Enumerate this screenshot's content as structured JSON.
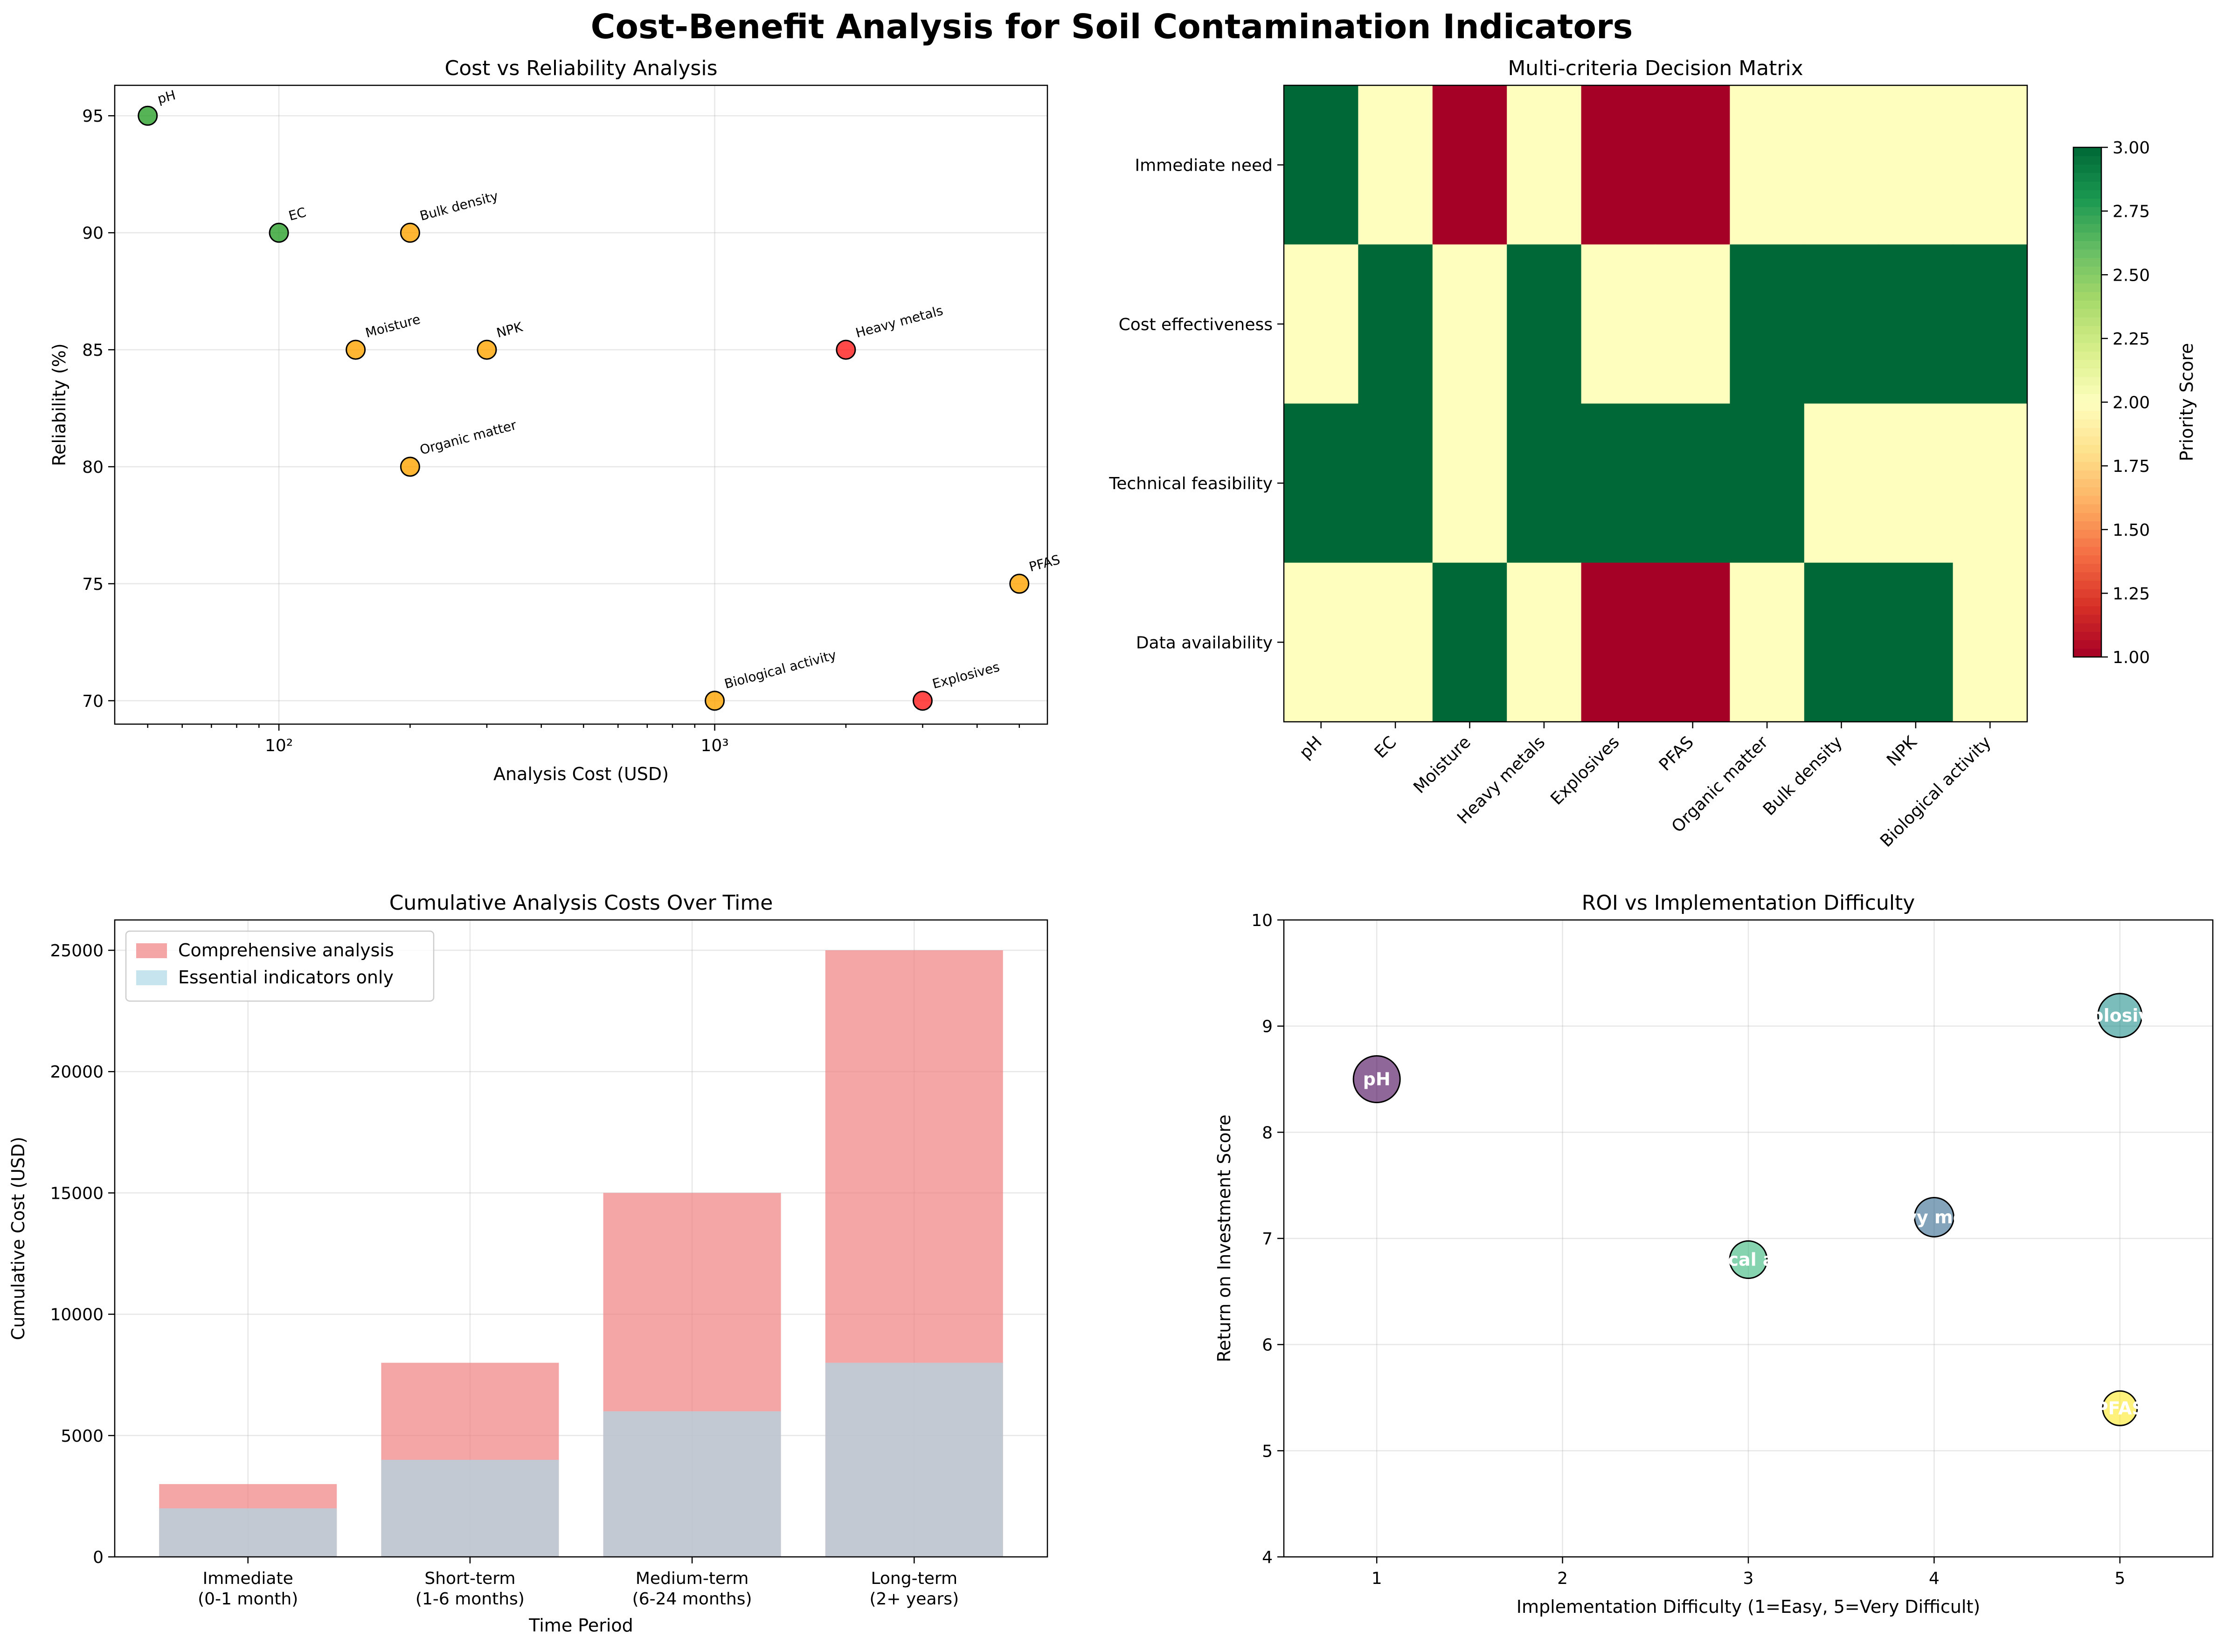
{
  "suptitle": "Cost-Benefit Analysis for Soil Contamination Indicators",
  "chart_data": [
    {
      "id": "cost_reliability",
      "type": "scatter",
      "title": "Cost vs Reliability Analysis",
      "xlabel": "Analysis Cost (USD)",
      "ylabel": "Reliability (%)",
      "xscale": "log",
      "xlim": [
        42,
        5800
      ],
      "ylim": [
        69,
        96.3
      ],
      "xticks": [
        {
          "value": 100,
          "label": "10²"
        },
        {
          "value": 1000,
          "label": "10³"
        }
      ],
      "yticks": [
        70,
        75,
        80,
        85,
        90,
        95
      ],
      "grid": true,
      "points": [
        {
          "label": "pH",
          "x": 50,
          "y": 95,
          "color": "#2ca02c"
        },
        {
          "label": "EC",
          "x": 100,
          "y": 90,
          "color": "#2ca02c"
        },
        {
          "label": "Moisture",
          "x": 150,
          "y": 85,
          "color": "#ffa500"
        },
        {
          "label": "Heavy metals",
          "x": 2000,
          "y": 85,
          "color": "#ff1a1a"
        },
        {
          "label": "Explosives",
          "x": 3000,
          "y": 70,
          "color": "#ff1a1a"
        },
        {
          "label": "PFAS",
          "x": 5000,
          "y": 75,
          "color": "#ffa500"
        },
        {
          "label": "Organic matter",
          "x": 200,
          "y": 80,
          "color": "#ffa500"
        },
        {
          "label": "Bulk density",
          "x": 200,
          "y": 90,
          "color": "#ffa500"
        },
        {
          "label": "NPK",
          "x": 300,
          "y": 85,
          "color": "#ffa500"
        },
        {
          "label": "Biological activity",
          "x": 1000,
          "y": 70,
          "color": "#ffa500"
        }
      ]
    },
    {
      "id": "decision_matrix",
      "type": "heatmap",
      "title": "Multi-criteria Decision Matrix",
      "columns": [
        "pH",
        "EC",
        "Moisture",
        "Heavy metals",
        "Explosives",
        "PFAS",
        "Organic matter",
        "Bulk density",
        "NPK",
        "Biological activity"
      ],
      "rows": [
        "Immediate need",
        "Cost effectiveness",
        "Technical feasibility",
        "Data availability"
      ],
      "values": [
        [
          3,
          2,
          1,
          2,
          1,
          1,
          2,
          2,
          2,
          2
        ],
        [
          2,
          3,
          2,
          3,
          2,
          2,
          3,
          3,
          3,
          3
        ],
        [
          3,
          3,
          2,
          3,
          3,
          3,
          3,
          2,
          2,
          2
        ],
        [
          2,
          2,
          3,
          2,
          1,
          1,
          2,
          3,
          3,
          2
        ]
      ],
      "colors": {
        "1": "#a50026",
        "2": "#feffbe",
        "3": "#006837"
      },
      "colorbar": {
        "label": "Priority Score",
        "range": [
          1.0,
          3.0
        ],
        "ticks": [
          "1.00",
          "1.25",
          "1.50",
          "1.75",
          "2.00",
          "2.25",
          "2.50",
          "2.75",
          "3.00"
        ],
        "cmap": [
          "#a50026",
          "#d73027",
          "#f46d43",
          "#fdae61",
          "#fee08b",
          "#feffbe",
          "#d9ef8b",
          "#a6d96a",
          "#66bd63",
          "#1a9850",
          "#006837"
        ]
      }
    },
    {
      "id": "cumulative_costs",
      "type": "bar",
      "title": "Cumulative Analysis Costs Over Time",
      "xlabel": "Time Period",
      "ylabel": "Cumulative Cost (USD)",
      "categories": [
        "Immediate\n(0-1 month)",
        "Short-term\n(1-6 months)",
        "Medium-term\n(6-24 months)",
        "Long-term\n(2+ years)"
      ],
      "ylim": [
        0,
        26250
      ],
      "yticks": [
        0,
        5000,
        10000,
        15000,
        20000,
        25000
      ],
      "grid": true,
      "legend_position": "top-left",
      "series": [
        {
          "name": "Comprehensive analysis",
          "values": [
            3000,
            8000,
            15000,
            25000
          ],
          "color": "#f08080",
          "alpha": 0.7
        },
        {
          "name": "Essential indicators only",
          "values": [
            2000,
            4000,
            6000,
            8000
          ],
          "color": "#add8e6",
          "alpha": 0.7
        }
      ]
    },
    {
      "id": "roi_difficulty",
      "type": "scatter",
      "title": "ROI vs Implementation Difficulty",
      "xlabel": "Implementation Difficulty (1=Easy, 5=Very Difficult)",
      "ylabel": "Return on Investment Score",
      "xlim": [
        0.5,
        5.5
      ],
      "ylim": [
        4,
        10
      ],
      "xticks": [
        1,
        2,
        3,
        4,
        5
      ],
      "yticks": [
        4,
        5,
        6,
        7,
        8,
        9,
        10
      ],
      "grid": true,
      "points": [
        {
          "label": "pH",
          "x": 1,
          "y": 8.5,
          "color": "#440154",
          "size": 50
        },
        {
          "label": "Biological activity",
          "x": 3,
          "y": 6.8,
          "color": "#35b779",
          "size": 40
        },
        {
          "label": "Heavy metals",
          "x": 4,
          "y": 7.2,
          "color": "#31688e",
          "size": 42
        },
        {
          "label": "Explosives",
          "x": 5,
          "y": 9.1,
          "color": "#21918c",
          "size": 47
        },
        {
          "label": "PFAS",
          "x": 5,
          "y": 5.4,
          "color": "#fde725",
          "size": 37
        }
      ]
    }
  ]
}
